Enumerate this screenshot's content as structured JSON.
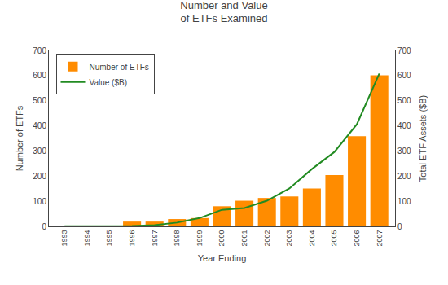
{
  "chart_data": {
    "type": "bar",
    "title": "Number and Value\nof ETFs Examined",
    "xlabel": "Year Ending",
    "ylabel": "Number of ETFs",
    "y2label": "Total ETF Assets ($B)",
    "x": [
      1993,
      1994,
      1995,
      1996,
      1997,
      1998,
      1999,
      2000,
      2001,
      2002,
      2003,
      2004,
      2005,
      2006,
      2007
    ],
    "xlim": [
      1992.3,
      2007.7
    ],
    "xticks": [
      1993,
      1994,
      1995,
      1996,
      1997,
      1998,
      1999,
      2000,
      2001,
      2002,
      2003,
      2004,
      2005,
      2006,
      2007
    ],
    "ylim": [
      0,
      700
    ],
    "yticks": [
      0,
      100,
      200,
      300,
      400,
      500,
      600,
      700
    ],
    "y2lim": [
      0,
      700
    ],
    "y2ticks": [
      0,
      100,
      200,
      300,
      400,
      500,
      600,
      700
    ],
    "series": [
      {
        "name": "Number of ETFs",
        "type": "bar",
        "color": "#FF8C00",
        "values": [
          2,
          2,
          2,
          19,
          19,
          29,
          33,
          80,
          102,
          113,
          119,
          151,
          204,
          359,
          601
        ]
      },
      {
        "name": "Value ($B)",
        "type": "line",
        "color": "#228B22",
        "axis": "y2",
        "values": [
          1,
          1,
          1,
          2,
          5,
          15,
          33,
          66,
          73,
          102,
          151,
          228,
          296,
          406,
          608
        ]
      }
    ],
    "grid": false,
    "legend": "upper left"
  }
}
